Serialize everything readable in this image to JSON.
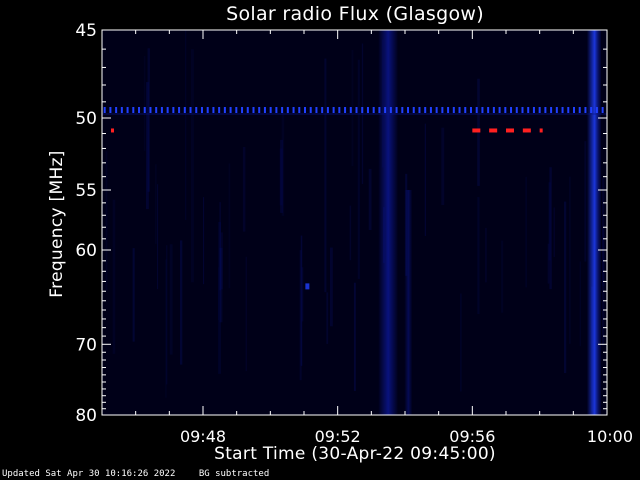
{
  "chart_data": {
    "type": "heatmap",
    "title": "Solar radio Flux (Glasgow)",
    "xlabel": "Start Time (30-Apr-22 09:45:00)",
    "ylabel": "Frequency [MHz]",
    "x_ticks": [
      "09:48",
      "09:52",
      "09:56",
      "10:00"
    ],
    "x_tick_minutes": [
      3,
      7,
      11,
      15
    ],
    "xlim_minutes": [
      0,
      15
    ],
    "y_ticks": [
      45,
      50,
      55,
      60,
      70,
      80
    ],
    "ylim": [
      45,
      80
    ],
    "y_scale": "reciprocal",
    "features": {
      "interference_line_mhz": 49.5,
      "red_dashes_mhz": 50.8,
      "red_dash_start_minutes": [
        11.0,
        11.5,
        12.0,
        12.5,
        13.0
      ],
      "bright_bands_minutes": [
        8.5,
        9.1,
        14.7
      ],
      "dot_feature": {
        "minute": 6.1,
        "mhz": 63.5
      }
    },
    "colors": {
      "background": "#000000",
      "low": "#000018",
      "mid": "#0a1488",
      "high": "#2040ff",
      "peak": "#ff2020"
    }
  },
  "footer": {
    "updated": "Updated Sat Apr 30 10:16:26 2022",
    "note": "BG subtracted"
  }
}
